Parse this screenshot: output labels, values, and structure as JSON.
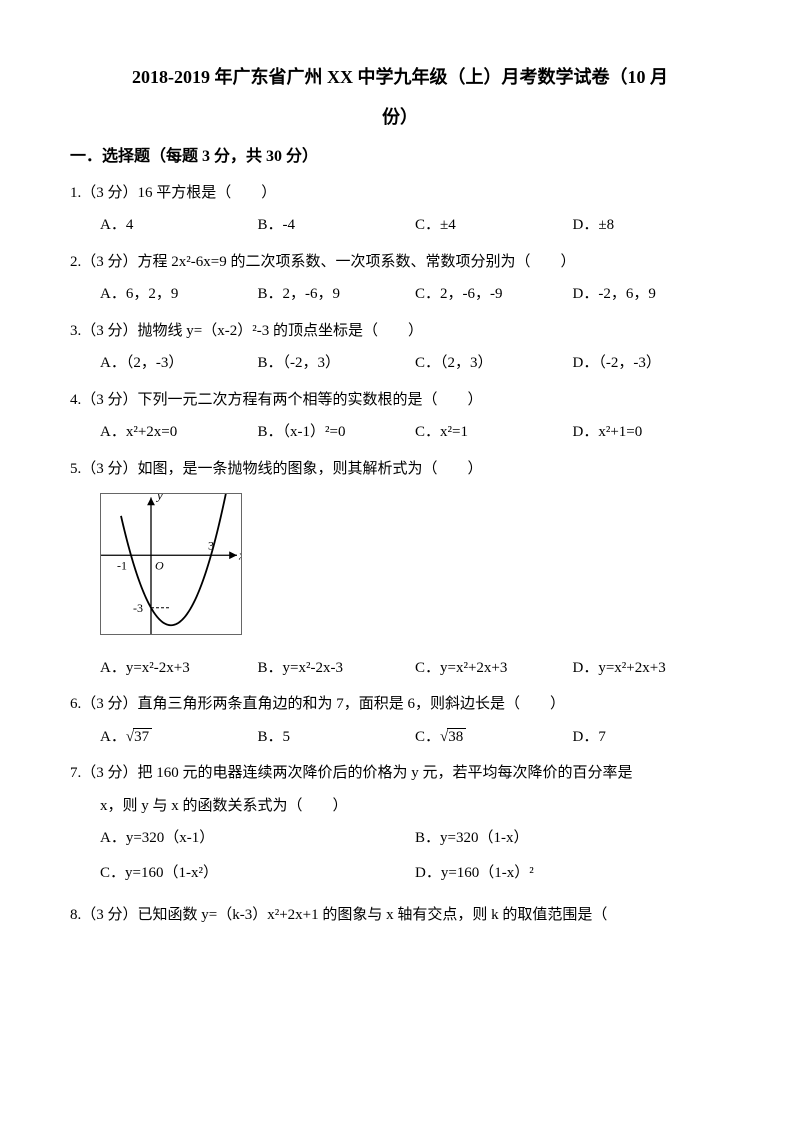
{
  "title_line1": "2018-2019 年广东省广州 XX 中学九年级（上）月考数学试卷（10 月",
  "title_line2": "份）",
  "section1": "一．选择题（每题 3 分，共 30 分）",
  "q1": {
    "stem": "1.（3 分）16 平方根是（　　）",
    "A": "A．4",
    "B": "B．-4",
    "C": "C．±4",
    "D": "D．±8"
  },
  "q2": {
    "stem": "2.（3 分）方程 2x²-6x=9 的二次项系数、一次项系数、常数项分别为（　　）",
    "A": "A．6，2，9",
    "B": "B．2，-6，9",
    "C": "C．2，-6，-9",
    "D": "D．-2，6，9"
  },
  "q3": {
    "stem": "3.（3 分）抛物线 y=（x-2）²-3 的顶点坐标是（　　）",
    "A": "A．（2，-3）",
    "B": "B．（-2，3）",
    "C": "C．（2，3）",
    "D": "D．（-2，-3）"
  },
  "q4": {
    "stem": "4.（3 分）下列一元二次方程有两个相等的实数根的是（　　）",
    "A": "A．x²+2x=0",
    "B": "B．（x-1）²=0",
    "C": "C．x²=1",
    "D": "D．x²+1=0"
  },
  "q5": {
    "stem": "5.（3 分）如图，是一条抛物线的图象，则其解析式为（　　）",
    "A": "A．y=x²-2x+3",
    "B": "B．y=x²-2x-3",
    "C": "C．y=x²+2x+3",
    "D": "D．y=x²+2x+3",
    "graph": {
      "width": 140,
      "height": 140,
      "bg": "#ffffff",
      "axis_color": "#000000",
      "curve_color": "#000000",
      "y_label": "y",
      "x_label": "x",
      "x_intercepts": [
        -1,
        3
      ],
      "vertex_y_label": "-3",
      "x_tick_neg": "-1",
      "x_tick_pos": "3",
      "origin": "O"
    }
  },
  "q6": {
    "stem": "6.（3 分）直角三角形两条直角边的和为 7，面积是 6，则斜边长是（　　）",
    "A_prefix": "A．",
    "A_val": "37",
    "B": "B．5",
    "C_prefix": "C．",
    "C_val": "38",
    "D": "D．7"
  },
  "q7": {
    "stem1": "7.（3 分）把 160 元的电器连续两次降价后的价格为 y 元，若平均每次降价的百分率是",
    "stem2": "x，则 y 与 x 的函数关系式为（　　）",
    "A": "A．y=320（x-1）",
    "B": "B．y=320（1-x）",
    "C": "C．y=160（1-x²）",
    "D": "D．y=160（1-x）²"
  },
  "q8": {
    "stem": "8.（3 分）已知函数 y=（k-3）x²+2x+1 的图象与 x 轴有交点，则 k 的取值范围是（"
  }
}
